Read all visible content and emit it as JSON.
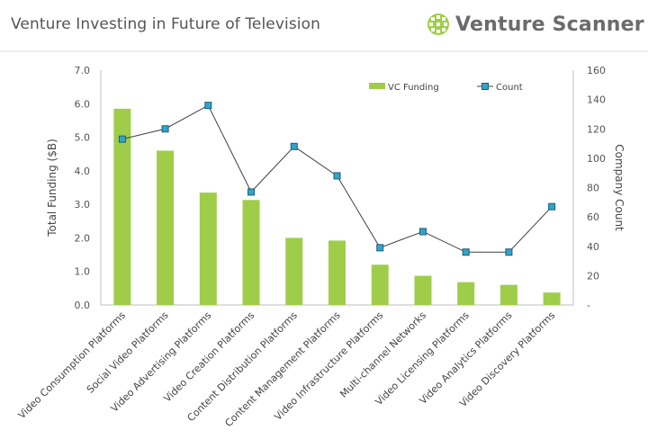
{
  "header": {
    "title": "Venture Investing in Future of Television",
    "brand_name": "Venture Scanner",
    "brand_icon": "globe-grid-icon"
  },
  "colors": {
    "bar": "#9fcd4a",
    "line": "#404040",
    "marker_fill": "#33a4c9",
    "marker_stroke": "#1a5c7a",
    "axis": "#bfbfbf"
  },
  "chart_data": {
    "type": "bar",
    "categories": [
      "Video Consumption Platforms",
      "Social Video Platforms",
      "Video Advertising Platforms",
      "Video Creation Platforms",
      "Content Distribution Platforms",
      "Content Management Platforms",
      "Video Infrastructure Platforms",
      "Multi-channel Networks",
      "Video Licensing Platforms",
      "Video Analytics Platforms",
      "Video Discovery Platforms"
    ],
    "series": [
      {
        "name": "VC Funding",
        "type": "bar",
        "axis": "left",
        "values": [
          5.85,
          4.6,
          3.35,
          3.13,
          2.0,
          1.92,
          1.2,
          0.87,
          0.68,
          0.6,
          0.37
        ]
      },
      {
        "name": "Count",
        "type": "line",
        "axis": "right",
        "values": [
          113,
          120,
          136,
          77,
          108,
          88,
          39,
          50,
          36,
          36,
          67
        ]
      }
    ],
    "ylabel": "Total Funding ($B)",
    "y2label": "Company Count",
    "ylim": [
      0,
      7
    ],
    "y2lim": [
      0,
      160
    ],
    "yticks": [
      "0.0",
      "1.0",
      "2.0",
      "3.0",
      "4.0",
      "5.0",
      "6.0",
      "7.0"
    ],
    "y2ticks": [
      "-",
      "20",
      "40",
      "60",
      "80",
      "100",
      "120",
      "140",
      "160"
    ],
    "legend": "top-right",
    "grid": false
  }
}
